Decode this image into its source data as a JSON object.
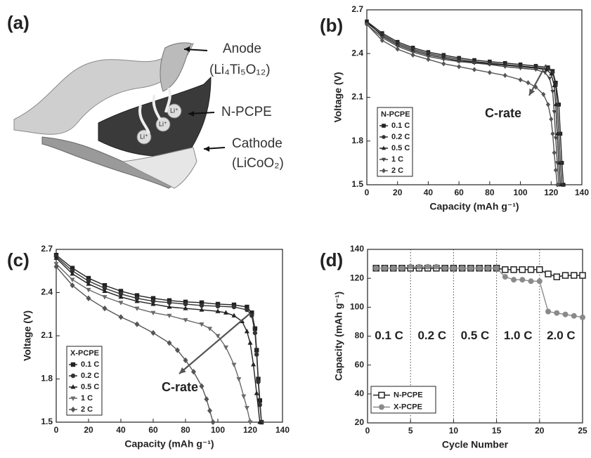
{
  "diagram": {
    "panel_label": "(a)",
    "anode": "Anode",
    "anode_formula": "(Li₄Ti₅O₁₂)",
    "separator": "N-PCPE",
    "cathode": "Cathode",
    "cathode_formula": "(LiCoO₂)",
    "ion_labels": [
      "Li⁺",
      "Li⁺",
      "Li⁺"
    ]
  },
  "chart_data": [
    {
      "type": "line",
      "panel_label": "(b)",
      "xlabel": "Capacity (mAh g⁻¹)",
      "ylabel": "Voltage (V)",
      "xlim": [
        0,
        140
      ],
      "xticks": [
        0,
        20,
        40,
        60,
        80,
        100,
        120,
        140
      ],
      "ylim": [
        1.5,
        2.7
      ],
      "yticks": [
        1.5,
        1.8,
        2.1,
        2.4,
        2.7
      ],
      "legend_title": "N-PCPE",
      "legend": "lower-left",
      "annotation": "C-rate",
      "series": [
        {
          "name": "0.1 C",
          "color": "#222222",
          "marker": "square",
          "x": [
            0,
            10,
            20,
            30,
            40,
            50,
            60,
            70,
            80,
            90,
            100,
            110,
            118,
            121,
            123,
            125,
            126,
            127,
            128
          ],
          "values": [
            2.62,
            2.54,
            2.48,
            2.44,
            2.41,
            2.39,
            2.37,
            2.355,
            2.345,
            2.335,
            2.325,
            2.315,
            2.305,
            2.28,
            2.2,
            2.05,
            1.85,
            1.65,
            1.5
          ]
        },
        {
          "name": "0.2 C",
          "color": "#333333",
          "marker": "circle",
          "x": [
            0,
            10,
            20,
            30,
            40,
            50,
            60,
            70,
            80,
            90,
            100,
            110,
            118,
            121,
            123,
            124,
            125,
            126,
            127
          ],
          "values": [
            2.61,
            2.53,
            2.47,
            2.43,
            2.4,
            2.38,
            2.36,
            2.345,
            2.335,
            2.325,
            2.315,
            2.305,
            2.295,
            2.27,
            2.18,
            2.05,
            1.85,
            1.65,
            1.5
          ]
        },
        {
          "name": "0.5 C",
          "color": "#222222",
          "marker": "triangle",
          "x": [
            0,
            10,
            20,
            30,
            40,
            50,
            60,
            70,
            80,
            90,
            100,
            110,
            117,
            120,
            122,
            123,
            124,
            125,
            126
          ],
          "values": [
            2.62,
            2.52,
            2.46,
            2.42,
            2.39,
            2.37,
            2.35,
            2.34,
            2.33,
            2.32,
            2.31,
            2.3,
            2.29,
            2.26,
            2.18,
            2.05,
            1.85,
            1.65,
            1.5
          ]
        },
        {
          "name": "1 C",
          "color": "#444444",
          "marker": "triangle-down",
          "x": [
            0,
            10,
            20,
            30,
            40,
            50,
            60,
            70,
            80,
            90,
            100,
            110,
            116,
            119,
            121,
            122,
            123,
            124,
            125
          ],
          "values": [
            2.6,
            2.51,
            2.45,
            2.41,
            2.38,
            2.36,
            2.345,
            2.335,
            2.325,
            2.31,
            2.3,
            2.29,
            2.27,
            2.23,
            2.14,
            2.0,
            1.82,
            1.65,
            1.5
          ]
        },
        {
          "name": "2 C",
          "color": "#555555",
          "marker": "diamond",
          "x": [
            0,
            10,
            20,
            30,
            40,
            50,
            60,
            70,
            80,
            90,
            100,
            105,
            110,
            115,
            118,
            120,
            121,
            122,
            123,
            124
          ],
          "values": [
            2.6,
            2.49,
            2.43,
            2.39,
            2.36,
            2.33,
            2.31,
            2.29,
            2.27,
            2.25,
            2.22,
            2.2,
            2.17,
            2.12,
            2.05,
            1.95,
            1.85,
            1.72,
            1.6,
            1.5
          ]
        }
      ]
    },
    {
      "type": "line",
      "panel_label": "(c)",
      "xlabel": "Capacity (mAh g⁻¹)",
      "ylabel": "Voltage (V)",
      "xlim": [
        0,
        140
      ],
      "xticks": [
        0,
        20,
        40,
        60,
        80,
        100,
        120,
        140
      ],
      "ylim": [
        1.5,
        2.7
      ],
      "yticks": [
        1.5,
        1.8,
        2.1,
        2.4,
        2.7
      ],
      "legend_title": "X-PCPE",
      "legend": "lower-left",
      "annotation": "C-rate",
      "series": [
        {
          "name": "0.1 C",
          "color": "#222222",
          "marker": "square",
          "x": [
            0,
            10,
            20,
            30,
            40,
            50,
            60,
            70,
            80,
            90,
            100,
            110,
            118,
            121,
            123,
            124,
            125,
            126,
            127
          ],
          "values": [
            2.66,
            2.57,
            2.5,
            2.45,
            2.41,
            2.38,
            2.36,
            2.345,
            2.335,
            2.33,
            2.32,
            2.315,
            2.3,
            2.26,
            2.15,
            2.0,
            1.8,
            1.65,
            1.5
          ]
        },
        {
          "name": "0.2 C",
          "color": "#333333",
          "marker": "circle",
          "x": [
            0,
            10,
            20,
            30,
            40,
            50,
            60,
            70,
            80,
            90,
            100,
            110,
            118,
            121,
            123,
            124,
            125,
            126,
            127
          ],
          "values": [
            2.65,
            2.55,
            2.48,
            2.43,
            2.39,
            2.36,
            2.34,
            2.33,
            2.32,
            2.31,
            2.305,
            2.3,
            2.28,
            2.24,
            2.12,
            1.97,
            1.78,
            1.62,
            1.5
          ]
        },
        {
          "name": "0.5 C",
          "color": "#222222",
          "marker": "triangle",
          "x": [
            0,
            10,
            20,
            30,
            40,
            50,
            60,
            70,
            80,
            90,
            100,
            105,
            110,
            115,
            118,
            120,
            122,
            124,
            126
          ],
          "values": [
            2.64,
            2.53,
            2.46,
            2.41,
            2.37,
            2.34,
            2.32,
            2.3,
            2.29,
            2.28,
            2.27,
            2.26,
            2.24,
            2.2,
            2.13,
            2.05,
            1.9,
            1.7,
            1.5
          ]
        },
        {
          "name": "1 C",
          "color": "#6a6a6a",
          "marker": "triangle-down",
          "x": [
            0,
            10,
            20,
            30,
            40,
            50,
            60,
            70,
            80,
            90,
            95,
            100,
            105,
            110,
            113,
            116,
            118,
            120
          ],
          "values": [
            2.6,
            2.49,
            2.42,
            2.37,
            2.33,
            2.29,
            2.26,
            2.24,
            2.21,
            2.18,
            2.15,
            2.1,
            2.02,
            1.9,
            1.8,
            1.68,
            1.6,
            1.5
          ]
        },
        {
          "name": "2 C",
          "color": "#555555",
          "marker": "diamond",
          "x": [
            0,
            10,
            20,
            30,
            40,
            50,
            60,
            70,
            75,
            80,
            85,
            90,
            93,
            95,
            97
          ],
          "values": [
            2.58,
            2.45,
            2.36,
            2.29,
            2.23,
            2.18,
            2.12,
            2.05,
            2.0,
            1.93,
            1.85,
            1.75,
            1.66,
            1.58,
            1.5
          ]
        }
      ]
    },
    {
      "type": "line",
      "panel_label": "(d)",
      "xlabel": "Cycle Number",
      "ylabel": "Capacity (mAh g⁻¹)",
      "xlim": [
        0,
        25
      ],
      "xticks": [
        0,
        5,
        10,
        15,
        20,
        25
      ],
      "ylim": [
        20,
        140
      ],
      "yticks": [
        20,
        40,
        60,
        80,
        100,
        120,
        140
      ],
      "legend": "lower-left",
      "dividers": [
        5,
        10,
        15,
        20
      ],
      "region_labels": [
        "0.1 C",
        "0.2 C",
        "0.5 C",
        "1.0 C",
        "2.0 C"
      ],
      "x": [
        1,
        2,
        3,
        4,
        5,
        6,
        7,
        8,
        9,
        10,
        11,
        12,
        13,
        14,
        15,
        16,
        17,
        18,
        19,
        20,
        21,
        22,
        23,
        24,
        25
      ],
      "series": [
        {
          "name": "N-PCPE",
          "color": "#222222",
          "marker": "square-open",
          "values": [
            127,
            127,
            127,
            127,
            127,
            127,
            127,
            127,
            127,
            127,
            127,
            127,
            127,
            127,
            127,
            126,
            126,
            126,
            126,
            126,
            123,
            121,
            122,
            122,
            122
          ]
        },
        {
          "name": "X-PCPE",
          "color": "#8a8a8a",
          "marker": "circle",
          "values": [
            127,
            127,
            127,
            127,
            128,
            128,
            128,
            128,
            127,
            127,
            127,
            127,
            127,
            127,
            127,
            121,
            119,
            119,
            118,
            118,
            97,
            96,
            95,
            94,
            93
          ]
        }
      ]
    }
  ]
}
